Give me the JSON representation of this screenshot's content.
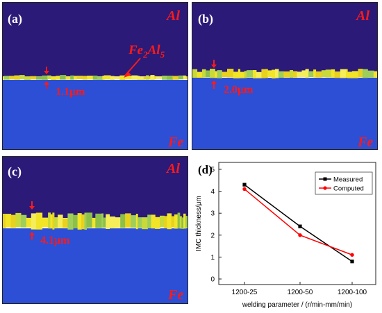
{
  "panels": [
    {
      "label": "(a)",
      "top_material": "Al",
      "bottom_material": "Fe",
      "thickness_label": "1.1μm",
      "phase_base": "Fe",
      "phase_sub1": "2",
      "phase_mid": "Al",
      "phase_sub2": "5"
    },
    {
      "label": "(b)",
      "top_material": "Al",
      "bottom_material": "Fe",
      "thickness_label": "2.0μm"
    },
    {
      "label": "(c)",
      "top_material": "Al",
      "bottom_material": "Fe",
      "thickness_label": "4.1μm"
    }
  ],
  "colors": {
    "al_region": "#2b1a78",
    "fe_region": "#2d4fd6",
    "imc_yellow": "#f2e528",
    "imc_green": "#8cc04a",
    "annotation": "#ff1a1a",
    "measured": "#000000",
    "computed": "#ff0000"
  },
  "chart_data": {
    "label": "(d)",
    "type": "line",
    "categories": [
      "1200-25",
      "1200-50",
      "1200-100"
    ],
    "series": [
      {
        "name": "Measured",
        "values": [
          4.3,
          2.4,
          0.8
        ],
        "color": "#000000",
        "marker": "square"
      },
      {
        "name": "Computed",
        "values": [
          4.1,
          2.0,
          1.1
        ],
        "color": "#ff0000",
        "marker": "circle"
      }
    ],
    "ylabel": "IMC thickness/μm",
    "xlabel": "welding parameter / (r/min-mm/min)",
    "ylim": [
      0,
      5
    ],
    "yticks": [
      0,
      1,
      2,
      3,
      4,
      5
    ],
    "grid": false,
    "legend_position": "top-right"
  }
}
